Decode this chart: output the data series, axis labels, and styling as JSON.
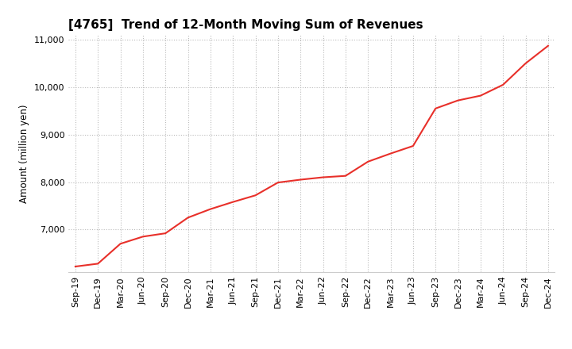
{
  "title": "[4765]  Trend of 12-Month Moving Sum of Revenues",
  "ylabel": "Amount (million yen)",
  "line_color": "#e8302a",
  "background_color": "#ffffff",
  "grid_color": "#bbbbbb",
  "x_labels": [
    "Sep-19",
    "Dec-19",
    "Mar-20",
    "Jun-20",
    "Sep-20",
    "Dec-20",
    "Mar-21",
    "Jun-21",
    "Sep-21",
    "Dec-21",
    "Mar-22",
    "Jun-22",
    "Sep-22",
    "Dec-22",
    "Mar-23",
    "Jun-23",
    "Sep-23",
    "Dec-23",
    "Mar-24",
    "Jun-24",
    "Sep-24",
    "Dec-24"
  ],
  "x_values": [
    0,
    1,
    2,
    3,
    4,
    5,
    6,
    7,
    8,
    9,
    10,
    11,
    12,
    13,
    14,
    15,
    16,
    17,
    18,
    19,
    20,
    21
  ],
  "y_values": [
    6220,
    6280,
    6700,
    6850,
    6920,
    7250,
    7430,
    7580,
    7720,
    7990,
    8050,
    8100,
    8130,
    8430,
    8600,
    8760,
    9550,
    9720,
    9820,
    10050,
    10500,
    10870
  ],
  "ylim": [
    6100,
    11100
  ],
  "yticks": [
    7000,
    8000,
    9000,
    10000,
    11000
  ],
  "ytick_labels": [
    "7,000",
    "8,000",
    "9,000",
    "10,000",
    "11,000"
  ],
  "title_fontsize": 11,
  "label_fontsize": 8.5,
  "tick_fontsize": 8
}
